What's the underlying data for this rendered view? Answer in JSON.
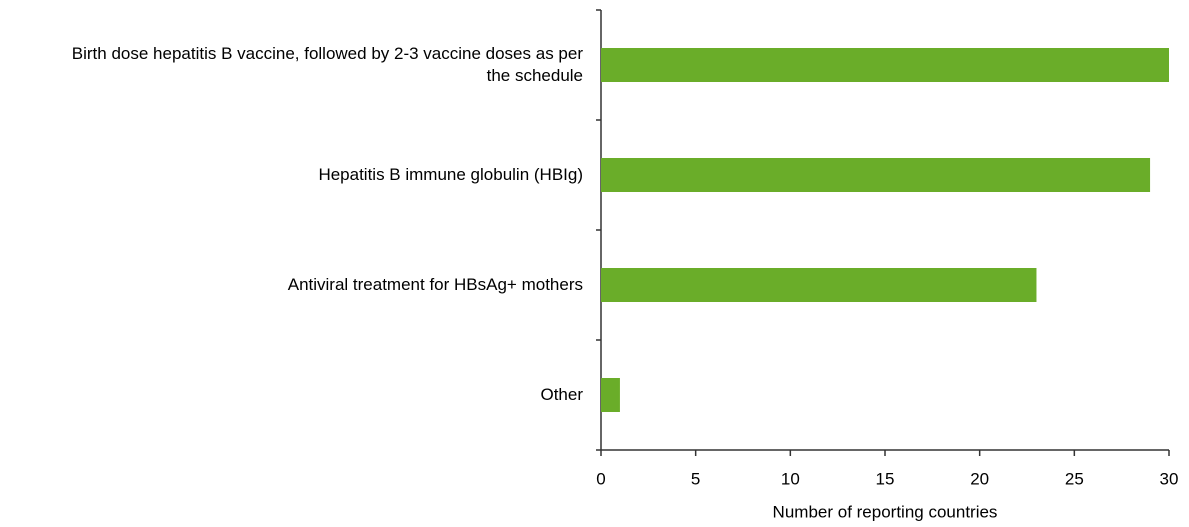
{
  "chart_data": {
    "type": "bar",
    "orientation": "horizontal",
    "x_label": "Number of reporting countries",
    "categories": [
      "Birth dose hepatitis B vaccine, followed by 2-3 vaccine doses as per the schedule",
      "Hepatitis B immune globulin (HBIg)",
      "Antiviral treatment for HBsAg+ mothers",
      "Other"
    ],
    "values": [
      30,
      29,
      23,
      1
    ],
    "color": "#6aad29",
    "xlim": [
      0,
      30
    ],
    "xticks": [
      0,
      5,
      10,
      15,
      20,
      25,
      30
    ],
    "grid": false
  }
}
